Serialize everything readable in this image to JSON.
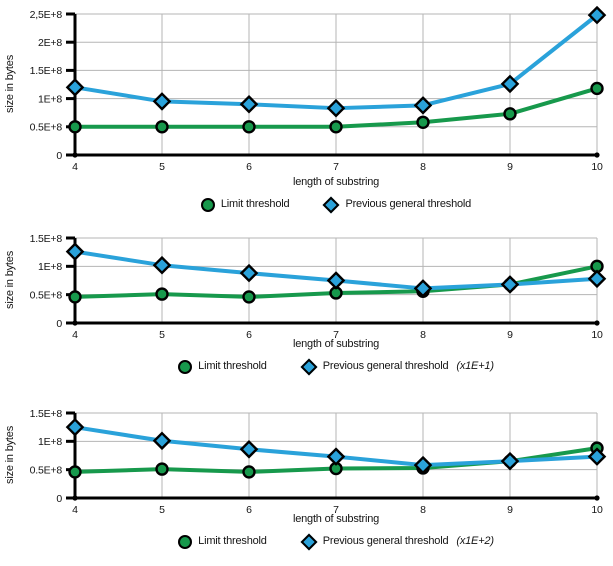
{
  "colors": {
    "limit": "#17994c",
    "previous": "#2aa2da",
    "grid": "#b5b5b5",
    "axis": "#000000",
    "text": "#141414"
  },
  "chart_data": [
    {
      "type": "line",
      "title": "",
      "xlabel": "length of substring",
      "ylabel": "size in bytes",
      "x": [
        4,
        5,
        6,
        7,
        8,
        9,
        10
      ],
      "ylim": [
        0,
        250000000
      ],
      "ytick_labels": [
        "0",
        "0.5E+8",
        "1E+8",
        "1.5E+8",
        "2E+8",
        "2,5E+8"
      ],
      "ytick_values": [
        0,
        50000000,
        100000000,
        150000000,
        200000000,
        250000000
      ],
      "grid": true,
      "legend_position": "bottom-center",
      "series": [
        {
          "name": "Limit threshold",
          "legend_note": "",
          "marker": "circle",
          "color_key": "limit",
          "values": [
            50000000,
            50000000,
            50000000,
            50000000,
            58000000,
            73000000,
            118000000
          ]
        },
        {
          "name": "Previous general threshold",
          "legend_note": "",
          "marker": "diamond",
          "color_key": "previous",
          "values": [
            120000000,
            95000000,
            90000000,
            83000000,
            88000000,
            126000000,
            248000000
          ]
        }
      ]
    },
    {
      "type": "line",
      "title": "",
      "xlabel": "length of substring",
      "ylabel": "size in bytes",
      "x": [
        4,
        5,
        6,
        7,
        8,
        9,
        10
      ],
      "ylim": [
        0,
        150000000
      ],
      "ytick_labels": [
        "0",
        "0.5E+8",
        "1E+8",
        "1.5E+8"
      ],
      "ytick_values": [
        0,
        50000000,
        100000000,
        150000000
      ],
      "grid": true,
      "legend_position": "bottom-center",
      "series": [
        {
          "name": "Limit threshold",
          "legend_note": "",
          "marker": "circle",
          "color_key": "limit",
          "values": [
            46000000,
            51000000,
            46000000,
            53000000,
            56000000,
            68000000,
            100000000
          ]
        },
        {
          "name": "Previous general threshold",
          "legend_note": "(x1E+1)",
          "marker": "diamond",
          "color_key": "previous",
          "values": [
            126000000,
            102000000,
            88000000,
            75000000,
            61000000,
            68000000,
            78000000
          ]
        }
      ]
    },
    {
      "type": "line",
      "title": "",
      "xlabel": "length of substring",
      "ylabel": "size in bytes",
      "x": [
        4,
        5,
        6,
        7,
        8,
        9,
        10
      ],
      "ylim": [
        0,
        150000000
      ],
      "ytick_labels": [
        "0",
        "0.5E+8",
        "1E+8",
        "1.5E+8"
      ],
      "ytick_values": [
        0,
        50000000,
        100000000,
        150000000
      ],
      "grid": true,
      "legend_position": "bottom-center",
      "series": [
        {
          "name": "Limit threshold",
          "legend_note": "",
          "marker": "circle",
          "color_key": "limit",
          "values": [
            46000000,
            51000000,
            46000000,
            52000000,
            53000000,
            65000000,
            88000000
          ]
        },
        {
          "name": "Previous general threshold",
          "legend_note": "(x1E+2)",
          "marker": "diamond",
          "color_key": "previous",
          "values": [
            125000000,
            101000000,
            86000000,
            73000000,
            58000000,
            65000000,
            73000000
          ]
        }
      ]
    }
  ]
}
